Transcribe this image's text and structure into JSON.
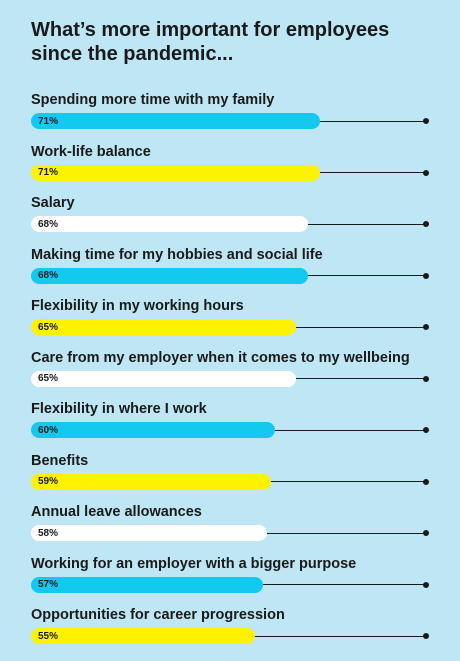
{
  "title": "What’s more important for employees since the pandemic...",
  "chart_data": {
    "type": "bar",
    "orientation": "horizontal",
    "title": "What’s more important for employees since the pandemic...",
    "xlim": [
      0,
      100
    ],
    "grid": false,
    "colors": {
      "blue": "#13c9ef",
      "yellow": "#fff200",
      "white": "#ffffff",
      "line": "#1a1a1a",
      "background": "#bfe6f4"
    },
    "categories": [
      "Spending more time with my family",
      "Work-life balance",
      "Salary",
      "Making time for my hobbies and social life",
      "Flexibility in my working hours",
      "Care from my employer when it comes to my wellbeing",
      "Flexibility in where I work",
      "Benefits",
      "Annual leave allowances",
      "Working for an employer with a bigger purpose",
      "Opportunities for career progression"
    ],
    "values": [
      71,
      71,
      68,
      68,
      65,
      65,
      60,
      59,
      58,
      57,
      55
    ],
    "value_labels": [
      "71%",
      "71%",
      "68%",
      "68%",
      "65%",
      "65%",
      "60%",
      "59%",
      "58%",
      "57%",
      "55%"
    ],
    "bar_colors": [
      "#13c9ef",
      "#fff200",
      "#ffffff",
      "#13c9ef",
      "#fff200",
      "#ffffff",
      "#13c9ef",
      "#fff200",
      "#ffffff",
      "#13c9ef",
      "#fff200"
    ]
  }
}
